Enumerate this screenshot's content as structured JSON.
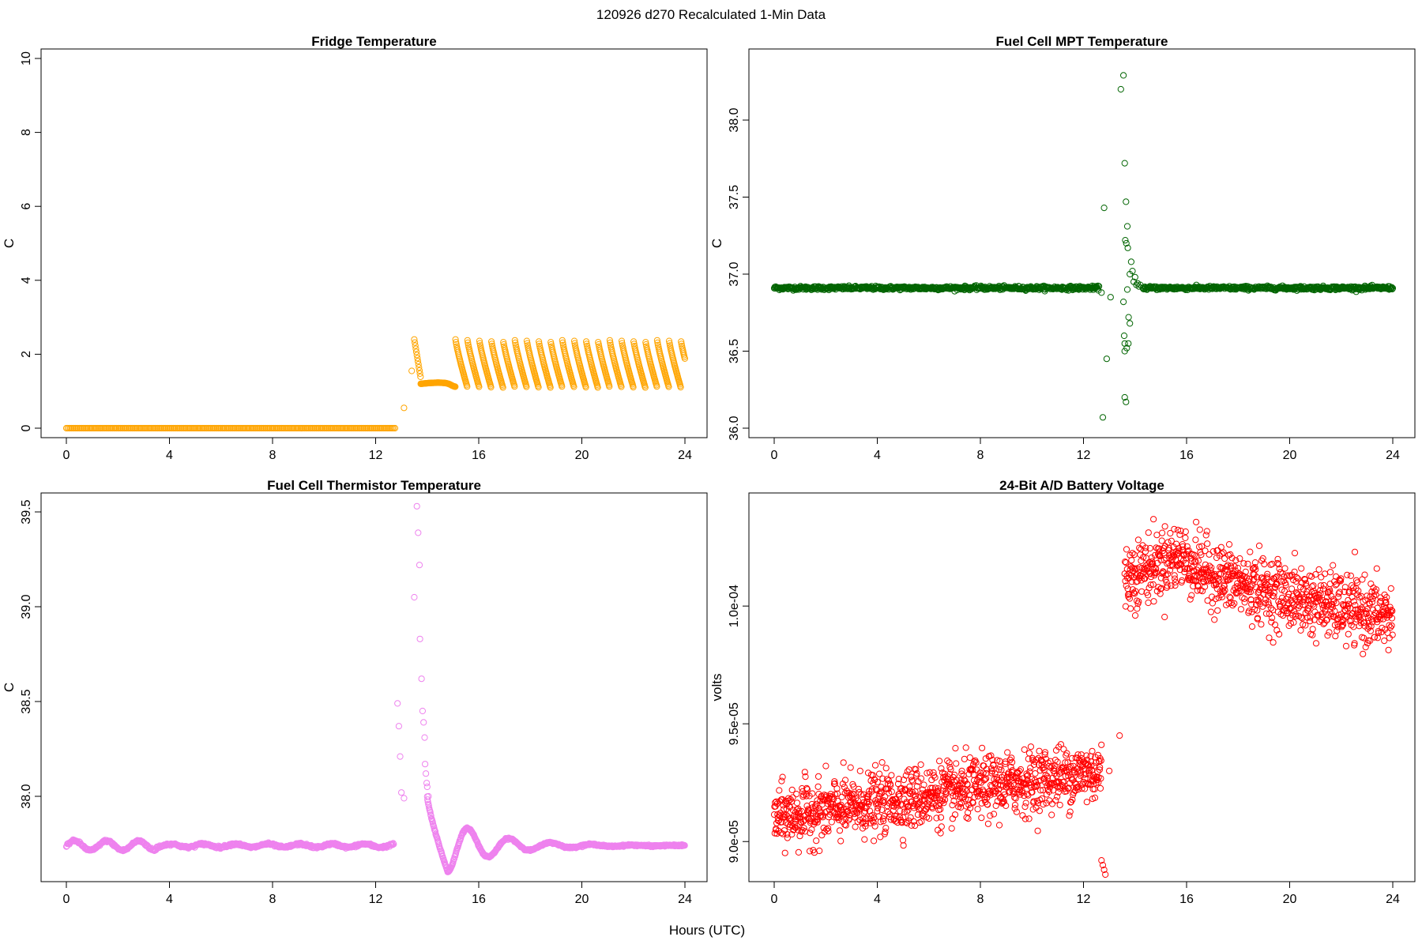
{
  "figure": {
    "title": "120926   d270   Recalculated 1-Min Data",
    "xlabel": "Hours (UTC)"
  },
  "chart_data": [
    {
      "type": "scatter",
      "title": "Fridge Temperature",
      "xlabel": "Hours (UTC)",
      "ylabel": "C",
      "color": "#FFA500",
      "xlim": [
        0,
        24
      ],
      "ylim": [
        0,
        10
      ],
      "xticks": [
        "0",
        "4",
        "8",
        "12",
        "16",
        "20",
        "24"
      ],
      "yticks": [
        "0",
        "2",
        "4",
        "6",
        "8",
        "10"
      ],
      "segments": [
        {
          "x_start": 0.0,
          "x_end": 12.8,
          "value": 0.0,
          "pattern": "flat"
        },
        {
          "x": [
            13.1,
            13.4
          ],
          "y": [
            0.55,
            1.55
          ],
          "pattern": "points"
        },
        {
          "x_start": 13.5,
          "x_end": 13.75,
          "peak": 2.4,
          "trough": 1.35,
          "pattern": "decay"
        },
        {
          "x_start": 13.75,
          "x_end": 15.1,
          "value": 1.2,
          "pattern": "hump"
        },
        {
          "x_start": 15.1,
          "x_end": 24.0,
          "peak": 2.4,
          "trough": 1.1,
          "period": 0.46,
          "pattern": "sawtooth"
        }
      ]
    },
    {
      "type": "scatter",
      "title": "Fuel Cell MPT Temperature",
      "xlabel": "Hours (UTC)",
      "ylabel": "C",
      "color": "#006400",
      "xlim": [
        0,
        24
      ],
      "ylim": [
        36.0,
        38.4
      ],
      "xticks": [
        "0",
        "4",
        "8",
        "12",
        "16",
        "20",
        "24"
      ],
      "yticks": [
        "36.0",
        "36.5",
        "37.0",
        "37.5",
        "38.0"
      ],
      "baseline": 36.91,
      "baseline_ranges": [
        [
          0.0,
          12.6
        ],
        [
          14.3,
          24.0
        ]
      ],
      "spike_points": {
        "x": [
          12.7,
          12.8,
          12.9,
          13.05,
          13.45,
          13.55,
          13.6,
          13.65,
          13.7,
          13.62,
          13.58,
          13.66,
          13.72,
          13.6,
          13.75,
          13.8,
          13.68,
          13.74,
          13.55,
          13.6,
          13.7,
          13.8,
          13.85,
          13.9,
          13.95,
          14.0,
          14.05,
          14.1,
          14.15,
          14.2,
          12.75,
          13.65,
          13.6
        ],
        "y": [
          36.88,
          37.43,
          36.45,
          36.85,
          38.2,
          38.29,
          37.72,
          37.47,
          37.31,
          37.22,
          36.6,
          37.2,
          37.17,
          36.5,
          36.72,
          36.68,
          36.52,
          36.55,
          36.82,
          36.2,
          36.9,
          37.0,
          37.08,
          37.02,
          36.95,
          36.98,
          36.93,
          36.94,
          36.92,
          36.93,
          36.07,
          36.17,
          36.55
        ]
      }
    },
    {
      "type": "scatter",
      "title": "Fuel Cell Thermistor Temperature",
      "xlabel": "Hours (UTC)",
      "ylabel": "C",
      "color": "#EE82EE",
      "xlim": [
        0,
        24
      ],
      "ylim": [
        37.6,
        39.55
      ],
      "xticks": [
        "0",
        "4",
        "8",
        "12",
        "16",
        "20",
        "24"
      ],
      "yticks": [
        "38.0",
        "38.5",
        "39.0",
        "39.5"
      ],
      "baseline": 37.74,
      "oscillation": {
        "amplitude": 0.025,
        "period": 1.25,
        "x_start": 0.0,
        "x_end": 12.7
      },
      "spike_points": {
        "x": [
          12.85,
          12.9,
          12.95,
          13.0,
          13.1,
          13.5,
          13.6,
          13.65,
          13.7,
          13.72,
          13.78,
          13.82,
          13.86,
          13.9,
          13.92,
          13.95,
          13.98,
          14.0,
          14.05
        ],
        "y": [
          38.49,
          38.37,
          38.21,
          38.02,
          37.99,
          39.05,
          39.53,
          39.39,
          39.22,
          38.83,
          38.62,
          38.45,
          38.39,
          38.31,
          38.17,
          38.12,
          38.07,
          38.05,
          38.0
        ]
      },
      "recovery": {
        "x_start": 14.0,
        "x_end": 24.0,
        "trough": 37.6,
        "trough_x": 14.8,
        "peak": 37.79,
        "peak_x": 15.5,
        "damping": 0.55,
        "period": 1.6
      }
    },
    {
      "type": "scatter",
      "title": "24-Bit A/D Battery Voltage",
      "xlabel": "Hours (UTC)",
      "ylabel": "volts",
      "color": "#FF0000",
      "xlim": [
        0,
        24
      ],
      "ylim": [
        8.87e-05,
        0.0001044
      ],
      "xticks": [
        "0",
        "4",
        "8",
        "12",
        "16",
        "20",
        "24"
      ],
      "yticks": [
        "9.0e-05",
        "9.5e-05",
        "1.0e-04"
      ],
      "ytick_values": [
        9e-05,
        9.5e-05,
        0.0001
      ],
      "low_regime": {
        "x_start": 0.0,
        "x_end": 12.7,
        "start_mean": 9.1e-05,
        "end_mean": 9.3e-05,
        "spread": 6.5e-07
      },
      "dropouts": {
        "x": [
          12.7,
          12.75,
          12.8,
          12.85,
          13.0,
          13.4
        ],
        "y": [
          8.92e-05,
          8.9e-05,
          8.88e-05,
          8.86e-05,
          9.3e-05,
          9.45e-05
        ]
      },
      "high_regime": {
        "x_start": 13.6,
        "x_end": 24.0,
        "start_mean": 0.0001012,
        "peak_mean": 0.0001022,
        "peak_x": 15.8,
        "end_mean": 9.95e-05,
        "spread": 7e-07
      }
    }
  ]
}
